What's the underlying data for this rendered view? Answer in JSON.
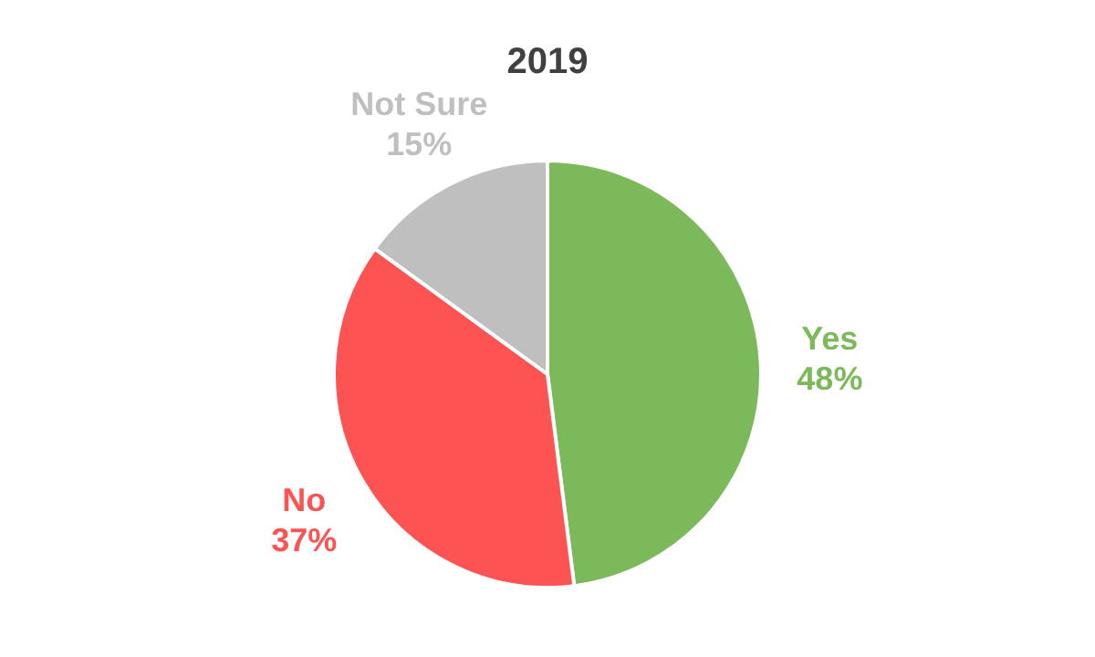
{
  "chart_data": {
    "type": "pie",
    "title": "2019",
    "categories": [
      "Yes",
      "No",
      "Not Sure"
    ],
    "values": [
      48,
      37,
      15
    ],
    "colors": [
      "#7cb95a",
      "#fd5353",
      "#bfbfbf"
    ],
    "value_labels": [
      "48%",
      "37%",
      "15%"
    ]
  }
}
